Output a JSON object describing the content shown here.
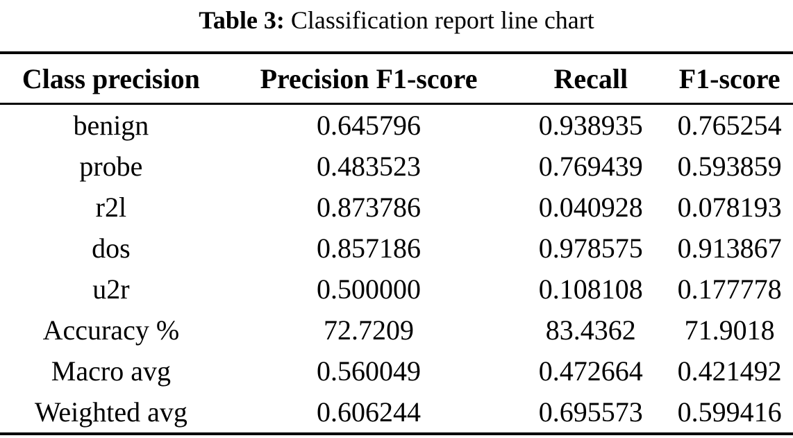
{
  "caption": {
    "label": "Table 3:",
    "text": "Classification report line chart"
  },
  "table": {
    "headers": {
      "col1": "Class precision",
      "col2": "Precision F1-score",
      "col3": "Recall",
      "col4": "F1-score"
    },
    "rows": [
      {
        "label": "benign",
        "precision": "0.645796",
        "recall": "0.938935",
        "f1": "0.765254"
      },
      {
        "label": "probe",
        "precision": "0.483523",
        "recall": "0.769439",
        "f1": "0.593859"
      },
      {
        "label": "r2l",
        "precision": "0.873786",
        "recall": "0.040928",
        "f1": "0.078193"
      },
      {
        "label": "dos",
        "precision": "0.857186",
        "recall": "0.978575",
        "f1": "0.913867"
      },
      {
        "label": "u2r",
        "precision": "0.500000",
        "recall": "0.108108",
        "f1": "0.177778"
      },
      {
        "label": "Accuracy %",
        "precision": "72.7209",
        "recall": "83.4362",
        "f1": "71.9018"
      },
      {
        "label": "Macro avg",
        "precision": "0.560049",
        "recall": "0.472664",
        "f1": "0.421492"
      },
      {
        "label": "Weighted avg",
        "precision": "0.606244",
        "recall": "0.695573",
        "f1": "0.599416"
      }
    ],
    "colors": {
      "text": "#000000",
      "rule": "#000000",
      "background": "#ffffff"
    }
  }
}
